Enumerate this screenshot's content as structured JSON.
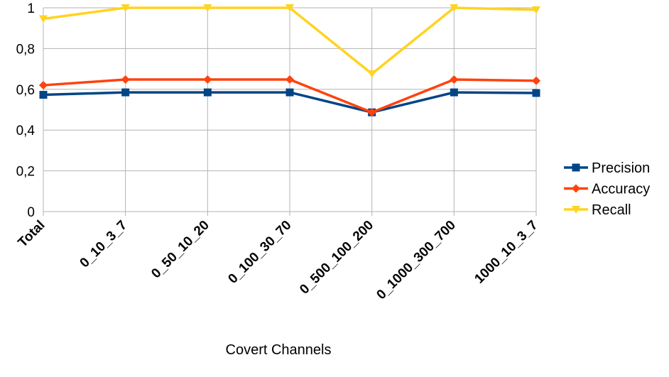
{
  "chart_data": {
    "type": "line",
    "title": "",
    "xlabel": "Covert Channels",
    "ylabel": "",
    "categories": [
      "Total",
      "0_10_3_7",
      "0_50_10_20",
      "0_100_30_70",
      "0_500_100_200",
      "0_1000_300_700",
      "1000_10_3_7"
    ],
    "ylim": [
      0,
      1
    ],
    "yticks": [
      0,
      0.2,
      0.4,
      0.6,
      0.8,
      1
    ],
    "ytick_labels": [
      "0",
      "0,2",
      "0,4",
      "0,6",
      "0,8",
      "1"
    ],
    "grid": true,
    "legend_position": "right",
    "series": [
      {
        "name": "Precision",
        "color": "#004586",
        "marker": "square",
        "values": [
          0.573,
          0.585,
          0.585,
          0.585,
          0.487,
          0.585,
          0.582
        ]
      },
      {
        "name": "Accuracy",
        "color": "#ff420e",
        "marker": "diamond",
        "values": [
          0.62,
          0.648,
          0.648,
          0.648,
          0.487,
          0.648,
          0.642
        ]
      },
      {
        "name": "Recall",
        "color": "#ffd320",
        "marker": "triangle-down",
        "values": [
          0.946,
          1.0,
          1.0,
          1.0,
          0.676,
          1.0,
          0.99
        ]
      }
    ]
  }
}
